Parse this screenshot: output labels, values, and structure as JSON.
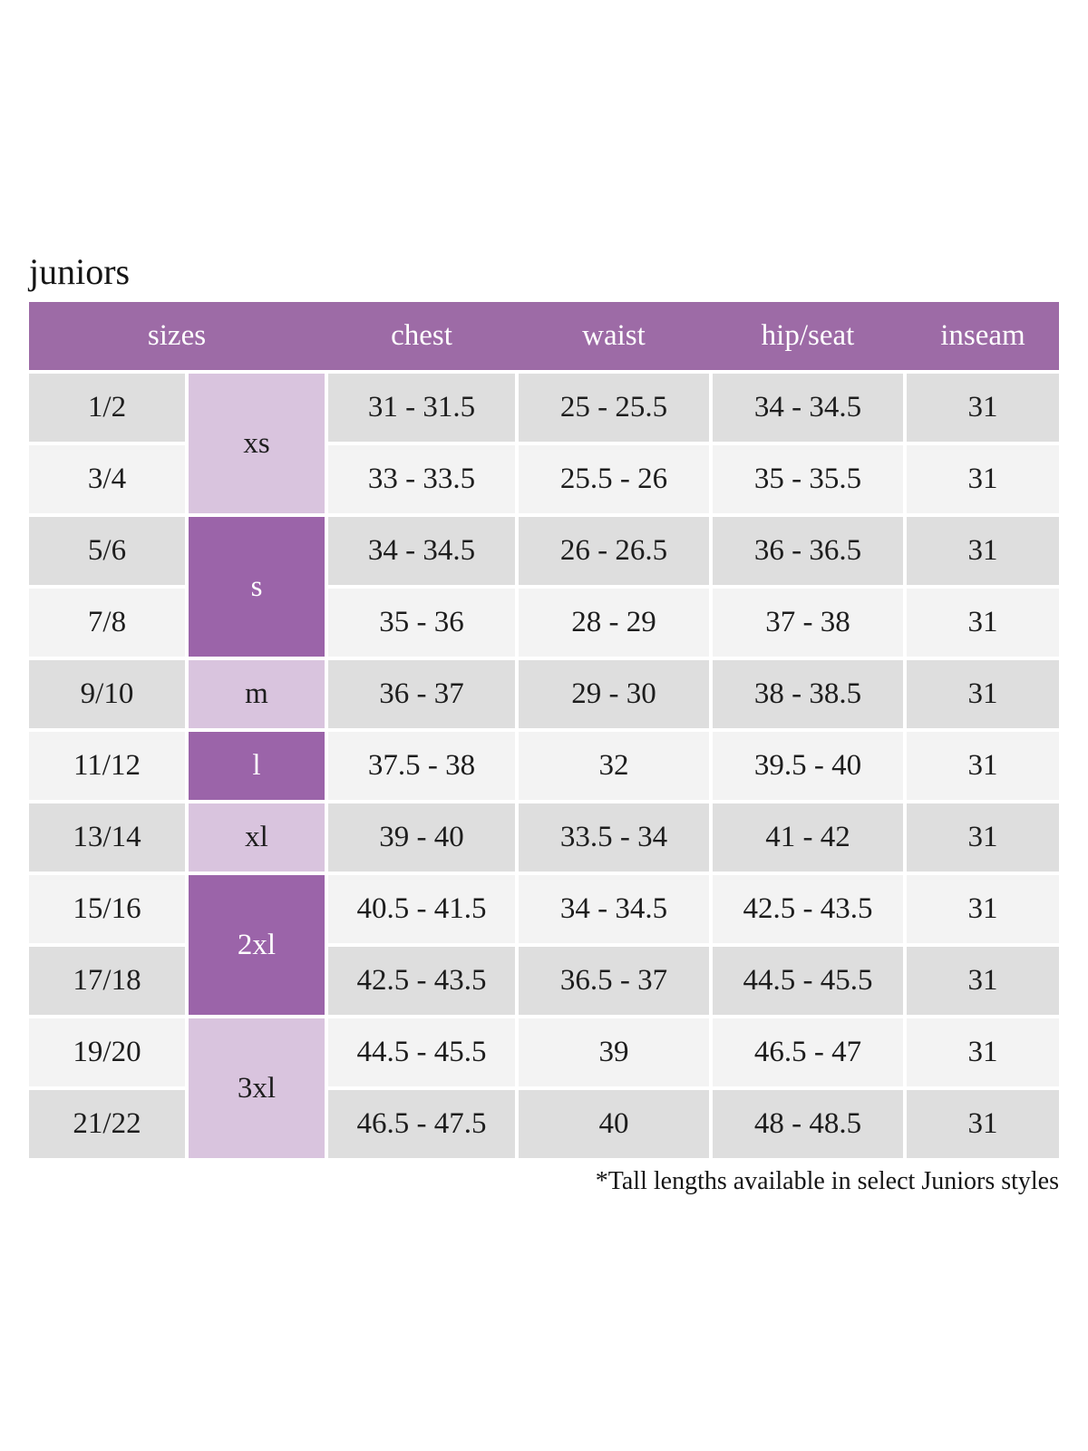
{
  "page": {
    "title": "juniors",
    "footnote": "*Tall lengths available in select Juniors styles"
  },
  "colors": {
    "page_bg": "#ffffff",
    "header_bg": "#9d6ba6",
    "header_text": "#ffffff",
    "size_dark_bg": "#9b64a9",
    "size_light_bg": "#d9c4de",
    "row_dark_bg": "#dedede",
    "row_light_bg": "#f3f3f3",
    "cell_text": "#1d1d1d"
  },
  "table": {
    "headers": [
      "sizes",
      "chest",
      "waist",
      "hip/seat",
      "inseam"
    ],
    "size_groups": [
      {
        "label": "xs",
        "rows": 2,
        "shade": "light"
      },
      {
        "label": "s",
        "rows": 2,
        "shade": "dark"
      },
      {
        "label": "m",
        "rows": 1,
        "shade": "light"
      },
      {
        "label": "l",
        "rows": 1,
        "shade": "dark"
      },
      {
        "label": "xl",
        "rows": 1,
        "shade": "light"
      },
      {
        "label": "2xl",
        "rows": 2,
        "shade": "dark"
      },
      {
        "label": "3xl",
        "rows": 2,
        "shade": "light"
      }
    ],
    "rows": [
      {
        "size": "1/2",
        "chest": "31 - 31.5",
        "waist": "25 - 25.5",
        "hip_seat": "34 - 34.5",
        "inseam": "31"
      },
      {
        "size": "3/4",
        "chest": "33 - 33.5",
        "waist": "25.5 - 26",
        "hip_seat": "35 - 35.5",
        "inseam": "31"
      },
      {
        "size": "5/6",
        "chest": "34 - 34.5",
        "waist": "26 - 26.5",
        "hip_seat": "36 - 36.5",
        "inseam": "31"
      },
      {
        "size": "7/8",
        "chest": "35 - 36",
        "waist": "28 - 29",
        "hip_seat": "37 - 38",
        "inseam": "31"
      },
      {
        "size": "9/10",
        "chest": "36 - 37",
        "waist": "29 - 30",
        "hip_seat": "38 - 38.5",
        "inseam": "31"
      },
      {
        "size": "11/12",
        "chest": "37.5 - 38",
        "waist": "32",
        "hip_seat": "39.5 - 40",
        "inseam": "31"
      },
      {
        "size": "13/14",
        "chest": "39 - 40",
        "waist": "33.5 - 34",
        "hip_seat": "41 - 42",
        "inseam": "31"
      },
      {
        "size": "15/16",
        "chest": "40.5 - 41.5",
        "waist": "34 - 34.5",
        "hip_seat": "42.5 - 43.5",
        "inseam": "31"
      },
      {
        "size": "17/18",
        "chest": "42.5 - 43.5",
        "waist": "36.5 - 37",
        "hip_seat": "44.5 - 45.5",
        "inseam": "31"
      },
      {
        "size": "19/20",
        "chest": "44.5 - 45.5",
        "waist": "39",
        "hip_seat": "46.5 - 47",
        "inseam": "31"
      },
      {
        "size": "21/22",
        "chest": "46.5 - 47.5",
        "waist": "40",
        "hip_seat": "48 - 48.5",
        "inseam": "31"
      }
    ]
  }
}
